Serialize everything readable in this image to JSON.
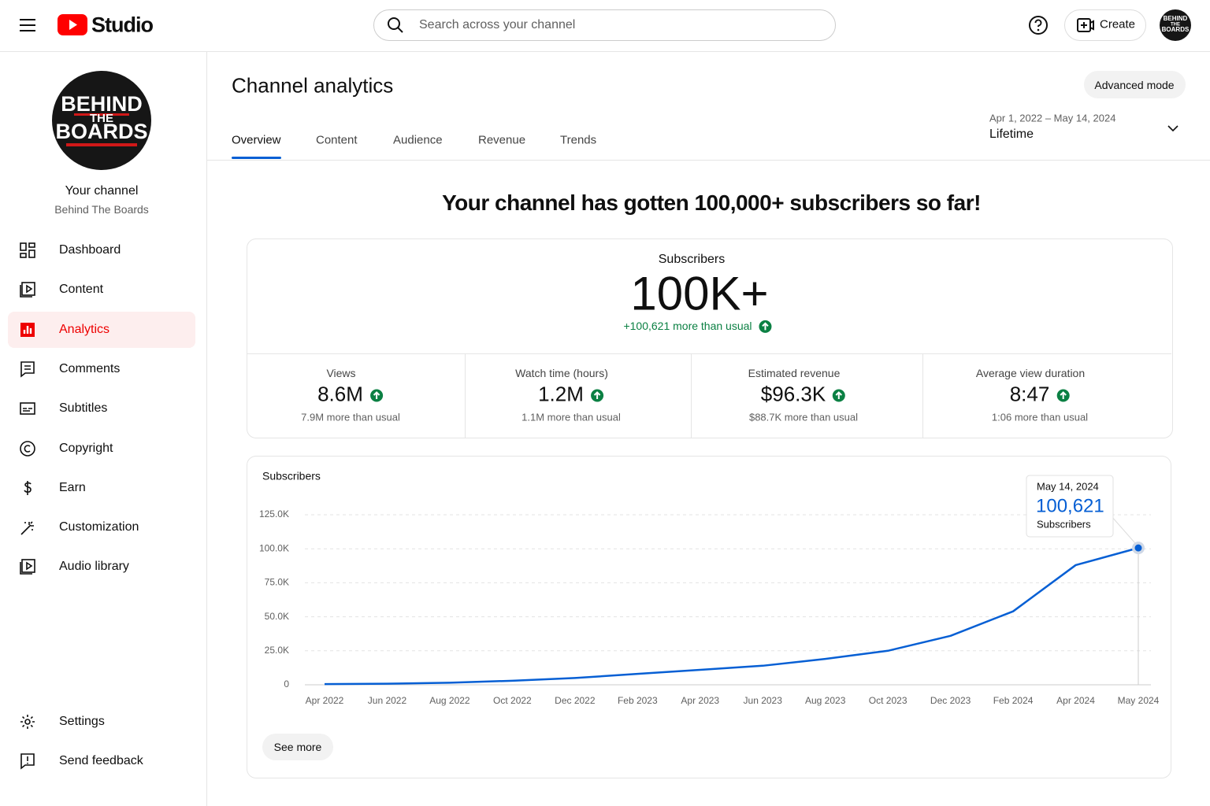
{
  "header": {
    "logo": "Studio",
    "search_placeholder": "Search across your channel",
    "create": "Create"
  },
  "sidebar": {
    "avatar_lines": [
      "BEHIND",
      "THE",
      "BOARDS"
    ],
    "channel_title": "Your channel",
    "channel_name": "Behind The Boards",
    "nav": [
      {
        "label": "Dashboard"
      },
      {
        "label": "Content"
      },
      {
        "label": "Analytics",
        "active": true
      },
      {
        "label": "Comments"
      },
      {
        "label": "Subtitles"
      },
      {
        "label": "Copyright"
      },
      {
        "label": "Earn"
      },
      {
        "label": "Customization"
      },
      {
        "label": "Audio library"
      }
    ],
    "footer_nav": [
      {
        "label": "Settings"
      },
      {
        "label": "Send feedback"
      }
    ]
  },
  "main": {
    "title": "Channel analytics",
    "advanced_mode": "Advanced mode",
    "tabs": [
      {
        "label": "Overview",
        "active": true
      },
      {
        "label": "Content"
      },
      {
        "label": "Audience"
      },
      {
        "label": "Revenue"
      },
      {
        "label": "Trends"
      }
    ],
    "date_range": "Apr 1, 2022 – May 14, 2024",
    "period": "Lifetime",
    "headline": "Your channel has gotten 100,000+ subscribers so far!",
    "summary": {
      "label": "Subscribers",
      "value": "100K+",
      "delta": "+100,621 more than usual"
    },
    "metrics": [
      {
        "label": "Views",
        "value": "8.6M",
        "delta": "7.9M more than usual"
      },
      {
        "label": "Watch time (hours)",
        "value": "1.2M",
        "delta": "1.1M more than usual"
      },
      {
        "label": "Estimated revenue",
        "value": "$96.3K",
        "delta": "$88.7K more than usual"
      },
      {
        "label": "Average view duration",
        "value": "8:47",
        "delta": "1:06 more than usual"
      }
    ],
    "see_more": "See more"
  },
  "chart_data": {
    "type": "line",
    "title": "Subscribers",
    "categories": [
      "Apr 2022",
      "Jun 2022",
      "Aug 2022",
      "Oct 2022",
      "Dec 2022",
      "Feb 2023",
      "Apr 2023",
      "Jun 2023",
      "Aug 2023",
      "Oct 2023",
      "Dec 2023",
      "Feb 2024",
      "Apr 2024",
      "May 2024"
    ],
    "series": [
      {
        "name": "Subscribers",
        "color": "#065fd4",
        "values": [
          500,
          800,
          1500,
          3000,
          5000,
          8000,
          11000,
          14000,
          19000,
          25000,
          36000,
          54000,
          88000,
          100621
        ],
        "value_labels": [
          null,
          null,
          null,
          null,
          null,
          null,
          null,
          null,
          null,
          null,
          null,
          null,
          null,
          "100,621"
        ]
      }
    ],
    "ylim": [
      0,
      125000
    ],
    "yticks": [
      0,
      {
        "value": 25000,
        "label": "25.0K"
      },
      {
        "value": 50000,
        "label": "50.0K"
      },
      {
        "value": 75000,
        "label": "75.0K"
      },
      {
        "value": 100000,
        "label": "100.0K"
      },
      {
        "value": 125000,
        "label": "125.0K"
      }
    ],
    "grid": true,
    "tooltip": {
      "date": "May 14, 2024"
    }
  }
}
